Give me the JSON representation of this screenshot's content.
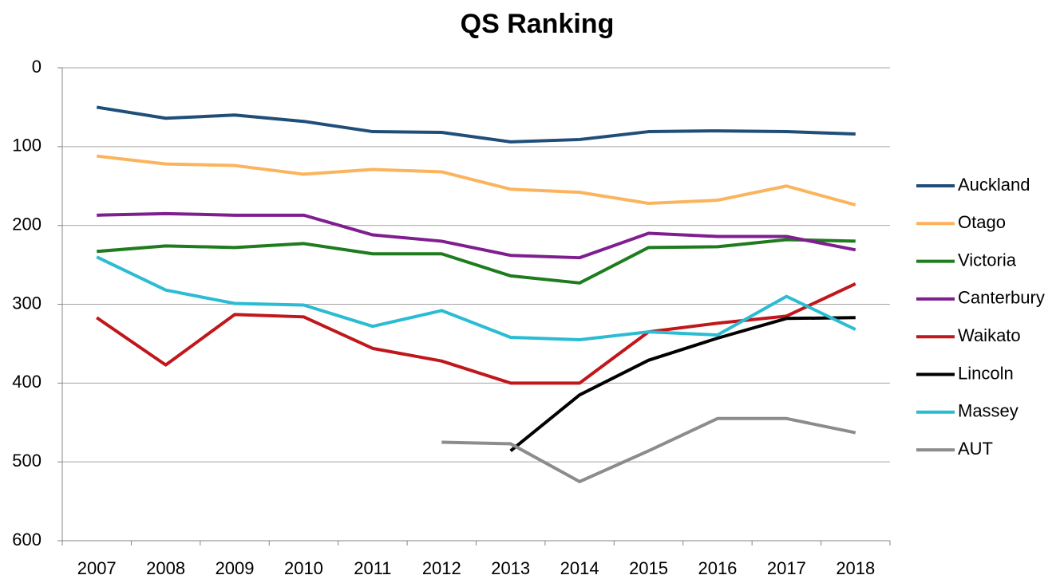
{
  "chart_data": {
    "type": "line",
    "title": "QS Ranking",
    "categories": [
      "2007",
      "2008",
      "2009",
      "2010",
      "2011",
      "2012",
      "2013",
      "2014",
      "2015",
      "2016",
      "2017",
      "2018"
    ],
    "ylim": [
      0,
      600
    ],
    "yticks": [
      0,
      100,
      200,
      300,
      400,
      500,
      600
    ],
    "y_inverted": true,
    "grid": true,
    "legend": "right",
    "series": [
      {
        "name": "Auckland",
        "color": "#1f4e79",
        "values": [
          50,
          64,
          60,
          68,
          81,
          82,
          94,
          91,
          81,
          80,
          81,
          84
        ]
      },
      {
        "name": "Otago",
        "color": "#fbb45c",
        "values": [
          112,
          122,
          124,
          135,
          129,
          132,
          154,
          158,
          172,
          168,
          150,
          174
        ]
      },
      {
        "name": "Victoria",
        "color": "#1e7b1e",
        "values": [
          233,
          226,
          228,
          223,
          236,
          236,
          264,
          273,
          228,
          227,
          218,
          220
        ]
      },
      {
        "name": "Canterbury",
        "color": "#7f1f8f",
        "values": [
          187,
          185,
          187,
          187,
          212,
          220,
          238,
          241,
          210,
          214,
          214,
          231
        ]
      },
      {
        "name": "Waikato",
        "color": "#c0171b",
        "values": [
          317,
          377,
          313,
          316,
          356,
          372,
          400,
          400,
          335,
          324,
          315,
          274
        ]
      },
      {
        "name": "Lincoln",
        "color": "#000000",
        "values": [
          null,
          null,
          null,
          null,
          null,
          null,
          486,
          415,
          371,
          343,
          318,
          317
        ]
      },
      {
        "name": "Massey",
        "color": "#2bbcd4",
        "values": [
          240,
          282,
          299,
          301,
          328,
          308,
          342,
          345,
          335,
          339,
          290,
          332
        ]
      },
      {
        "name": "AUT",
        "color": "#8c8c8c",
        "values": [
          null,
          null,
          null,
          null,
          null,
          475,
          477,
          525,
          486,
          445,
          445,
          463
        ]
      }
    ]
  }
}
